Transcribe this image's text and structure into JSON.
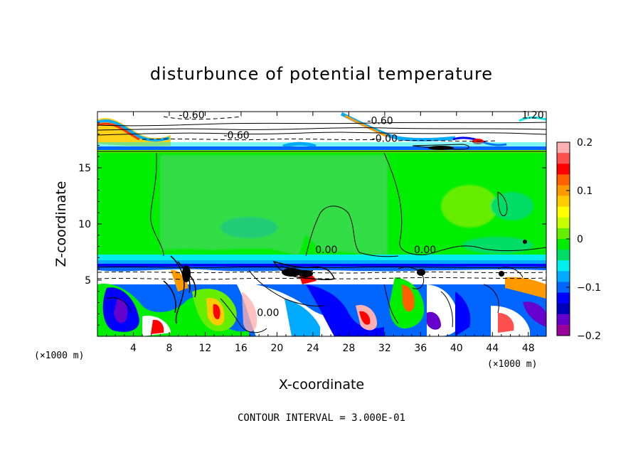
{
  "chart_data": {
    "type": "heatmap",
    "title": "disturbunce of potential temperature",
    "xlabel": "X-coordinate",
    "ylabel": "Z-coordinate",
    "x_unit": "(×1000 m)",
    "x_unit_right": "(×1000 m)",
    "xlim": [
      0,
      50
    ],
    "ylim": [
      0,
      20
    ],
    "x_ticks": [
      4,
      8,
      12,
      16,
      20,
      24,
      28,
      32,
      36,
      40,
      44,
      48
    ],
    "x_tick_labels": [
      "4",
      "8",
      "12",
      "16",
      "20",
      "24",
      "28",
      "32",
      "36",
      "40",
      "44",
      "48"
    ],
    "y_ticks": [
      5,
      10,
      15
    ],
    "y_tick_labels": [
      "5",
      "10",
      "15"
    ],
    "colorbar": {
      "min": -0.2,
      "max": 0.2,
      "ticks": [
        0.2,
        0.1,
        0,
        -0.1,
        -0.2
      ],
      "tick_labels": [
        "0.2",
        "0.1",
        "0",
        "−0.1",
        "−0.2"
      ],
      "colors": [
        "#ffb0b0",
        "#ff5050",
        "#ff0000",
        "#ff6000",
        "#ff9900",
        "#ffcc00",
        "#ffff00",
        "#c8ff00",
        "#66ee00",
        "#00ee00",
        "#00dd66",
        "#00eeee",
        "#00aaff",
        "#0066ff",
        "#0000ff",
        "#0000bb",
        "#6600cc",
        "#990099"
      ]
    },
    "contour_labels": [
      {
        "text": "-0.60",
        "x": 10.5,
        "z": 19.4
      },
      {
        "text": "-0.60",
        "x": 31.5,
        "z": 18.9
      },
      {
        "text": "-0.60",
        "x": 15.5,
        "z": 17.6
      },
      {
        "text": "-0.00",
        "x": 32.0,
        "z": 17.3
      },
      {
        "text": "1.20",
        "x": 48.5,
        "z": 19.4
      },
      {
        "text": "0.00",
        "x": 25.5,
        "z": 7.4
      },
      {
        "text": "0.00",
        "x": 36.5,
        "z": 7.4
      },
      {
        "text": "0.00",
        "x": 19.0,
        "z": 1.8
      }
    ],
    "contour_interval_text": "CONTOUR INTERVAL = 3.000E-01"
  }
}
